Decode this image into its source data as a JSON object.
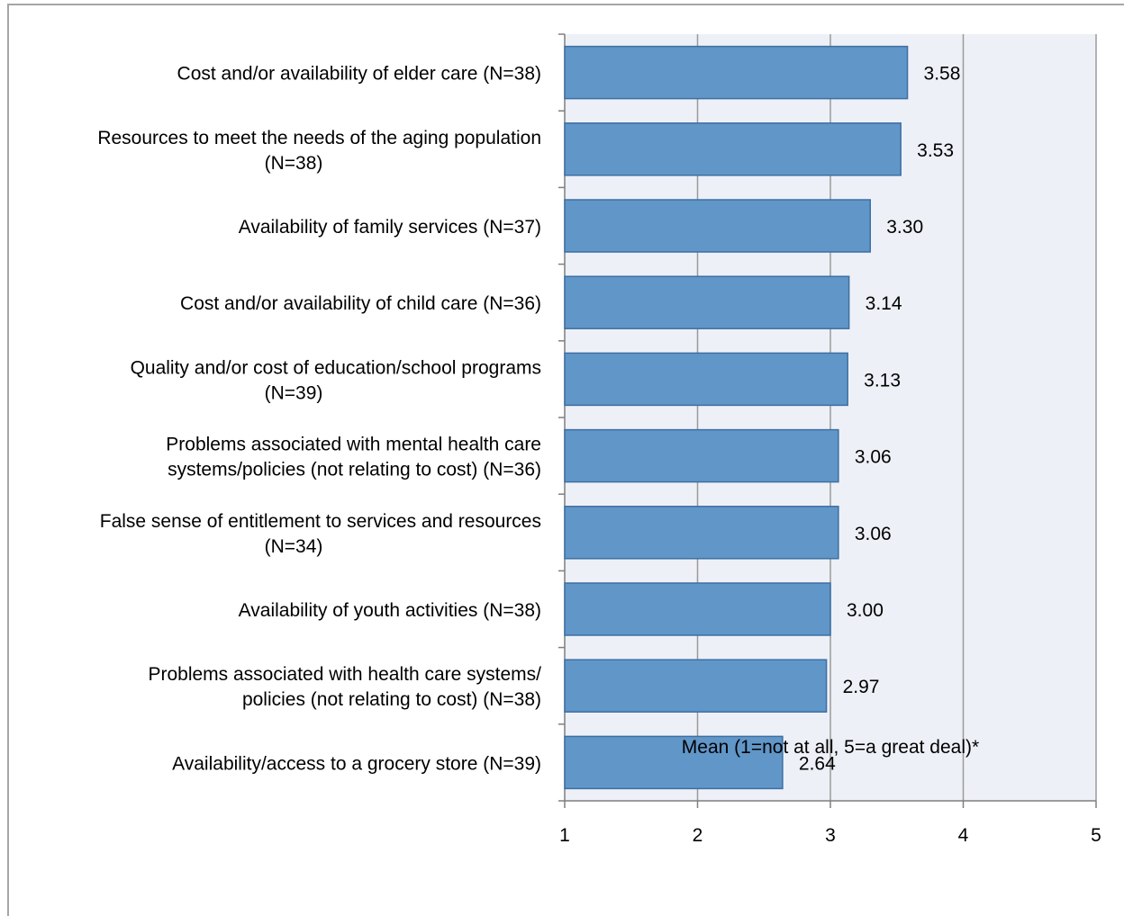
{
  "chart_data": {
    "type": "bar",
    "orientation": "horizontal",
    "categories": [
      [
        "Cost and/or availability of elder care (N=38)"
      ],
      [
        "Resources to meet the needs of the aging population",
        "(N=38)"
      ],
      [
        "Availability of family services (N=37)"
      ],
      [
        "Cost and/or availability of child care (N=36)"
      ],
      [
        "Quality and/or cost of education/school programs",
        "(N=39)"
      ],
      [
        "Problems associated with mental health care",
        "systems/policies (not relating to cost) (N=36)"
      ],
      [
        "False sense of entitlement to services and resources",
        "(N=34)"
      ],
      [
        "Availability of youth activities (N=38)"
      ],
      [
        "Problems associated with health care systems/",
        "policies (not relating to cost) (N=38)"
      ],
      [
        "Availability/access to a grocery store (N=39)"
      ]
    ],
    "values": [
      3.58,
      3.53,
      3.3,
      3.14,
      3.13,
      3.06,
      3.06,
      3.0,
      2.97,
      2.64
    ],
    "value_labels": [
      "3.58",
      "3.53",
      "3.30",
      "3.14",
      "3.13",
      "3.06",
      "3.06",
      "3.00",
      "2.97",
      "2.64"
    ],
    "title": "",
    "xlabel": "Mean (1=not at all, 5=a great deal)*",
    "ylabel": "",
    "xlim": [
      1,
      5
    ],
    "xticks": [
      "1",
      "2",
      "3",
      "4",
      "5"
    ],
    "grid": "vertical",
    "legend": "none",
    "colors": {
      "bar_fill": "#6196c8",
      "bar_stroke": "#3d6fa3",
      "plot_background": "#eef0f7",
      "gridline": "#9a9a9a",
      "axis": "#7f7f7f"
    }
  }
}
